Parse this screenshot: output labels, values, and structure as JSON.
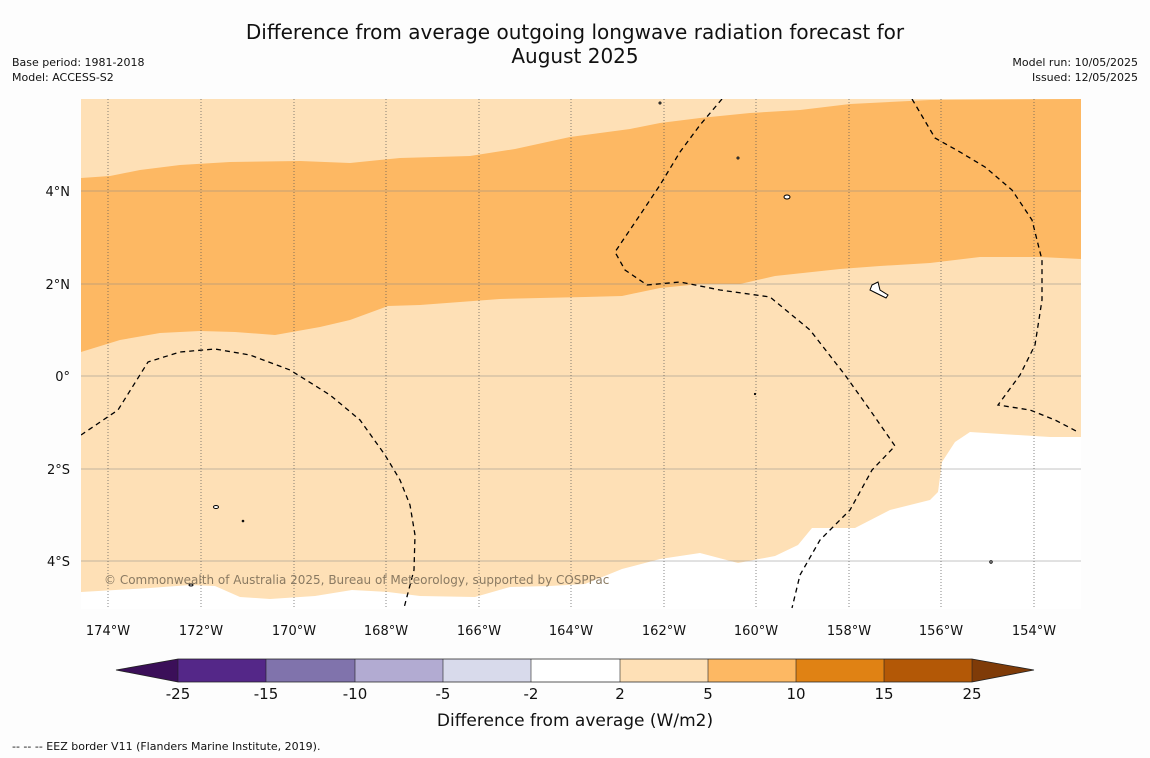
{
  "title": {
    "line1": "Difference from average outgoing longwave radiation forecast for",
    "line2": "August 2025"
  },
  "meta_left": {
    "base_period": "Base period: 1981-2018",
    "model": "Model: ACCESS-S2"
  },
  "meta_right": {
    "model_run": "Model run: 10/05/2025",
    "issued": "Issued: 12/05/2025"
  },
  "map": {
    "lat_labels": [
      "4°N",
      "2°N",
      "0°",
      "2°S",
      "4°S"
    ],
    "lon_labels": [
      "174°W",
      "172°W",
      "170°W",
      "168°W",
      "166°W",
      "164°W",
      "162°W",
      "160°W",
      "158°W",
      "156°W",
      "154°W"
    ],
    "copyright": "© Commonwealth of Australia 2025, Bureau of Meteorology, supported by COSPPac"
  },
  "colorbar": {
    "tick_labels": [
      "-25",
      "-15",
      "-10",
      "-5",
      "-2",
      "2",
      "5",
      "10",
      "15",
      "25"
    ],
    "colors": [
      "#3b0f59",
      "#542788",
      "#8073ac",
      "#b2abd2",
      "#d8daeb",
      "#ffffff",
      "#fee0b6",
      "#fdb863",
      "#e08214",
      "#b35806",
      "#7f3b08"
    ],
    "label": "Difference from average (W/m2)"
  },
  "footnote": "--  --  -- EEZ border V11 (Flanders Marine Institute, 2019)."
}
